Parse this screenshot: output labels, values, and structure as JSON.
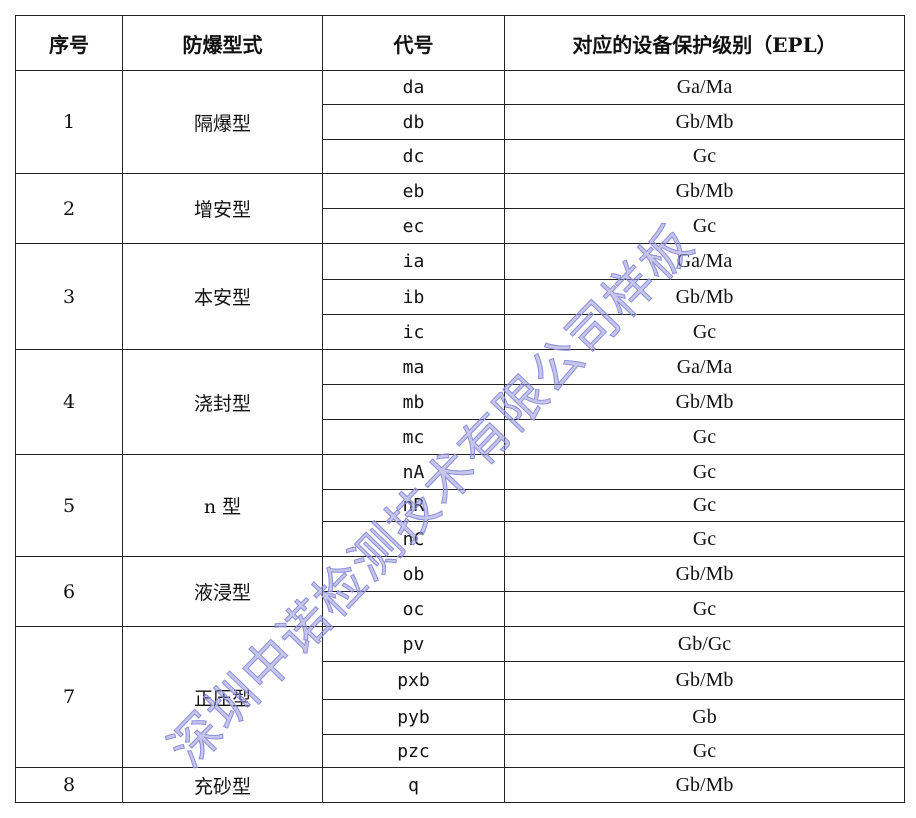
{
  "headers": [
    "序号",
    "防爆型式",
    "代号",
    "对应的设备保护级别（EPL）"
  ],
  "groups": [
    {
      "no": "1",
      "type": "隔爆型",
      "rows": [
        [
          "da",
          "Ga/Ma"
        ],
        [
          "db",
          "Gb/Mb"
        ],
        [
          "dc",
          "Gc"
        ]
      ]
    },
    {
      "no": "2",
      "type": "增安型",
      "rows": [
        [
          "eb",
          "Gb/Mb"
        ],
        [
          "ec",
          "Gc"
        ]
      ]
    },
    {
      "no": "3",
      "type": "本安型",
      "rows": [
        [
          "ia",
          "Ga/Ma"
        ],
        [
          "ib",
          "Gb/Mb"
        ],
        [
          "ic",
          "Gc"
        ]
      ]
    },
    {
      "no": "4",
      "type": "浇封型",
      "rows": [
        [
          "ma",
          "Ga/Ma"
        ],
        [
          "mb",
          "Gb/Mb"
        ],
        [
          "mc",
          "Gc"
        ]
      ]
    },
    {
      "no": "5",
      "type": "n 型",
      "rows": [
        [
          "nA",
          "Gc"
        ],
        [
          "nR",
          "Gc"
        ],
        [
          "nC",
          "Gc"
        ]
      ]
    },
    {
      "no": "6",
      "type": "液浸型",
      "rows": [
        [
          "ob",
          "Gb/Mb"
        ],
        [
          "oc",
          "Gc"
        ]
      ]
    },
    {
      "no": "7",
      "type": "正压型",
      "rows": [
        [
          "pv",
          "Gb/Gc"
        ],
        [
          "pxb",
          "Gb/Mb"
        ],
        [
          "pyb",
          "Gb"
        ],
        [
          "pzc",
          "Gc"
        ]
      ]
    },
    {
      "no": "8",
      "type": "充砂型",
      "rows": [
        [
          "q",
          "Gb/Mb"
        ]
      ]
    }
  ],
  "watermark": "深圳中诺检测技术有限公司样板",
  "colors": {
    "watermark": "#8e8ed8",
    "border": "#222222"
  }
}
